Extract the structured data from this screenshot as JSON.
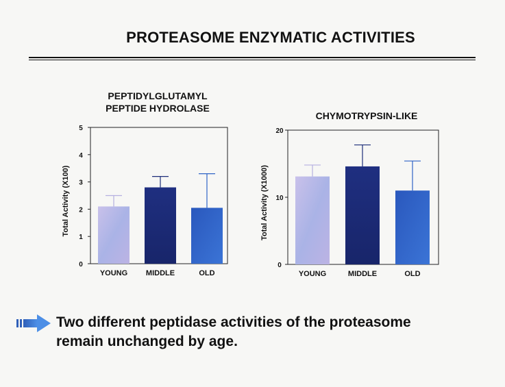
{
  "slide": {
    "title": "PROTEASOME ENZYMATIC ACTIVITIES",
    "conclusion_line1": "Two different peptidase activities of the proteasome",
    "conclusion_line2": "remain unchanged by age.",
    "arrow_icon": "right-arrow-icon",
    "arrow_color": "#3a78d0"
  },
  "chart_data": [
    {
      "type": "bar",
      "title_line1": "PEPTIDYLGLUTAMYL",
      "title_line2": "PEPTIDE HYDROLASE",
      "ylabel": "Total Activity  (X100)",
      "xlabel": "",
      "categories": [
        "YOUNG",
        "MIDDLE",
        "OLD"
      ],
      "values": [
        2.1,
        2.8,
        2.05
      ],
      "error_upper": [
        2.5,
        3.2,
        3.3
      ],
      "ylim": [
        0,
        5
      ],
      "yticks": [
        0,
        1,
        2,
        3,
        4,
        5
      ],
      "colors": [
        "#b5b0e0",
        "#1c2d78",
        "#2f63c6"
      ]
    },
    {
      "type": "bar",
      "title_line1": "CHYMOTRYPSIN-LIKE",
      "title_line2": "",
      "ylabel": "Total Activity  (X1000)",
      "xlabel": "",
      "categories": [
        "YOUNG",
        "MIDDLE",
        "OLD"
      ],
      "values": [
        13.1,
        14.6,
        11.0
      ],
      "error_upper": [
        14.8,
        17.8,
        15.4
      ],
      "ylim": [
        0,
        20
      ],
      "yticks": [
        0,
        10,
        20
      ],
      "colors": [
        "#b5b0e0",
        "#1c2d78",
        "#2f63c6"
      ]
    }
  ]
}
